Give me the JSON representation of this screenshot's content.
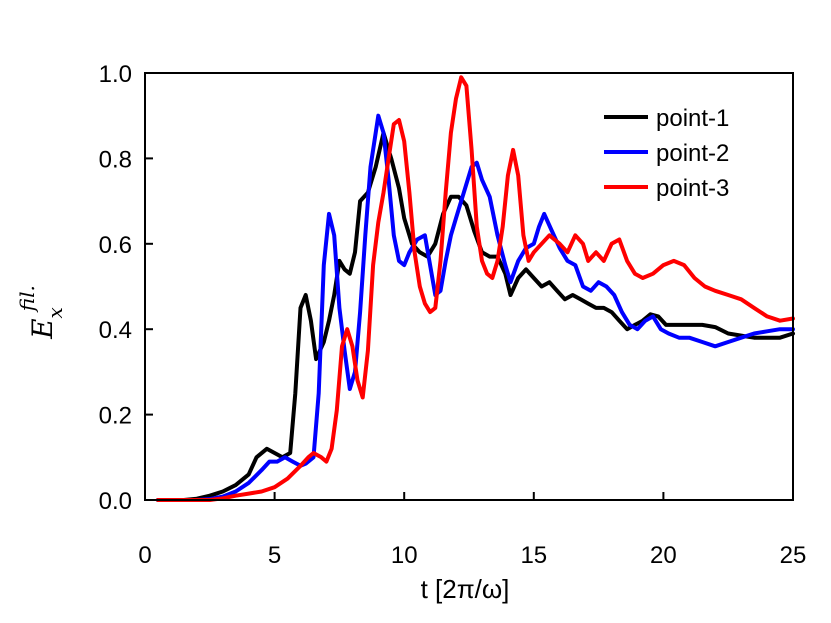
{
  "chart_data": {
    "type": "line",
    "xlabel": "t [2π/ω]",
    "ylabel": {
      "main": "E",
      "sub": "x",
      "sup": "fil."
    },
    "xlim": [
      0,
      25
    ],
    "ylim": [
      0,
      1.0
    ],
    "xticks": [
      0,
      5,
      10,
      15,
      20,
      25
    ],
    "yticks": [
      0.0,
      0.2,
      0.4,
      0.6,
      0.8,
      1.0
    ],
    "xtick_labels": [
      "0",
      "5",
      "10",
      "15",
      "20",
      "25"
    ],
    "ytick_labels": [
      "0.0",
      "0.2",
      "0.4",
      "0.6",
      "0.8",
      "1.0"
    ],
    "grid": false,
    "legend_position": "top-right",
    "series": [
      {
        "name": "point-1",
        "color": "#000000",
        "points": [
          [
            0.5,
            0.0
          ],
          [
            1.5,
            0.0
          ],
          [
            2.0,
            0.003
          ],
          [
            2.5,
            0.01
          ],
          [
            3.0,
            0.02
          ],
          [
            3.5,
            0.035
          ],
          [
            4.0,
            0.06
          ],
          [
            4.3,
            0.1
          ],
          [
            4.7,
            0.12
          ],
          [
            5.0,
            0.11
          ],
          [
            5.3,
            0.1
          ],
          [
            5.6,
            0.11
          ],
          [
            5.8,
            0.25
          ],
          [
            6.0,
            0.45
          ],
          [
            6.2,
            0.48
          ],
          [
            6.4,
            0.42
          ],
          [
            6.6,
            0.33
          ],
          [
            6.9,
            0.37
          ],
          [
            7.1,
            0.42
          ],
          [
            7.3,
            0.48
          ],
          [
            7.5,
            0.56
          ],
          [
            7.7,
            0.54
          ],
          [
            7.9,
            0.53
          ],
          [
            8.1,
            0.58
          ],
          [
            8.3,
            0.7
          ],
          [
            8.6,
            0.72
          ],
          [
            8.9,
            0.78
          ],
          [
            9.2,
            0.86
          ],
          [
            9.5,
            0.8
          ],
          [
            9.8,
            0.73
          ],
          [
            10.0,
            0.66
          ],
          [
            10.3,
            0.6
          ],
          [
            10.6,
            0.58
          ],
          [
            10.9,
            0.57
          ],
          [
            11.2,
            0.6
          ],
          [
            11.5,
            0.67
          ],
          [
            11.8,
            0.71
          ],
          [
            12.1,
            0.71
          ],
          [
            12.4,
            0.69
          ],
          [
            12.7,
            0.63
          ],
          [
            13.0,
            0.58
          ],
          [
            13.3,
            0.57
          ],
          [
            13.6,
            0.57
          ],
          [
            13.9,
            0.53
          ],
          [
            14.1,
            0.48
          ],
          [
            14.4,
            0.52
          ],
          [
            14.7,
            0.54
          ],
          [
            15.0,
            0.52
          ],
          [
            15.3,
            0.5
          ],
          [
            15.6,
            0.51
          ],
          [
            15.9,
            0.49
          ],
          [
            16.2,
            0.47
          ],
          [
            16.5,
            0.48
          ],
          [
            16.8,
            0.47
          ],
          [
            17.1,
            0.46
          ],
          [
            17.4,
            0.45
          ],
          [
            17.7,
            0.45
          ],
          [
            18.0,
            0.44
          ],
          [
            18.3,
            0.42
          ],
          [
            18.6,
            0.4
          ],
          [
            18.9,
            0.41
          ],
          [
            19.2,
            0.42
          ],
          [
            19.5,
            0.435
          ],
          [
            19.8,
            0.43
          ],
          [
            20.1,
            0.41
          ],
          [
            20.5,
            0.41
          ],
          [
            21.0,
            0.41
          ],
          [
            21.5,
            0.41
          ],
          [
            22.0,
            0.405
          ],
          [
            22.5,
            0.39
          ],
          [
            23.0,
            0.385
          ],
          [
            23.5,
            0.38
          ],
          [
            24.0,
            0.38
          ],
          [
            24.5,
            0.38
          ],
          [
            25.0,
            0.39
          ]
        ]
      },
      {
        "name": "point-2",
        "color": "#0000ff",
        "points": [
          [
            0.5,
            0.0
          ],
          [
            2.0,
            0.0
          ],
          [
            2.5,
            0.002
          ],
          [
            3.0,
            0.008
          ],
          [
            3.5,
            0.02
          ],
          [
            4.0,
            0.04
          ],
          [
            4.5,
            0.07
          ],
          [
            4.8,
            0.09
          ],
          [
            5.1,
            0.09
          ],
          [
            5.4,
            0.1
          ],
          [
            5.7,
            0.09
          ],
          [
            6.0,
            0.08
          ],
          [
            6.2,
            0.085
          ],
          [
            6.5,
            0.1
          ],
          [
            6.7,
            0.25
          ],
          [
            6.9,
            0.55
          ],
          [
            7.1,
            0.67
          ],
          [
            7.3,
            0.62
          ],
          [
            7.5,
            0.45
          ],
          [
            7.7,
            0.35
          ],
          [
            7.9,
            0.26
          ],
          [
            8.1,
            0.3
          ],
          [
            8.3,
            0.44
          ],
          [
            8.5,
            0.62
          ],
          [
            8.7,
            0.78
          ],
          [
            9.0,
            0.9
          ],
          [
            9.2,
            0.86
          ],
          [
            9.4,
            0.75
          ],
          [
            9.6,
            0.62
          ],
          [
            9.8,
            0.56
          ],
          [
            10.0,
            0.55
          ],
          [
            10.2,
            0.58
          ],
          [
            10.5,
            0.61
          ],
          [
            10.8,
            0.62
          ],
          [
            11.0,
            0.55
          ],
          [
            11.2,
            0.48
          ],
          [
            11.4,
            0.49
          ],
          [
            11.6,
            0.56
          ],
          [
            11.8,
            0.62
          ],
          [
            12.0,
            0.66
          ],
          [
            12.3,
            0.72
          ],
          [
            12.6,
            0.78
          ],
          [
            12.8,
            0.79
          ],
          [
            13.0,
            0.75
          ],
          [
            13.3,
            0.71
          ],
          [
            13.6,
            0.62
          ],
          [
            13.9,
            0.55
          ],
          [
            14.1,
            0.51
          ],
          [
            14.4,
            0.56
          ],
          [
            14.7,
            0.59
          ],
          [
            15.0,
            0.6
          ],
          [
            15.2,
            0.64
          ],
          [
            15.4,
            0.67
          ],
          [
            15.7,
            0.63
          ],
          [
            16.0,
            0.59
          ],
          [
            16.3,
            0.56
          ],
          [
            16.6,
            0.55
          ],
          [
            16.9,
            0.5
          ],
          [
            17.2,
            0.49
          ],
          [
            17.5,
            0.51
          ],
          [
            17.8,
            0.5
          ],
          [
            18.1,
            0.48
          ],
          [
            18.4,
            0.44
          ],
          [
            18.7,
            0.41
          ],
          [
            19.0,
            0.4
          ],
          [
            19.3,
            0.42
          ],
          [
            19.6,
            0.43
          ],
          [
            19.9,
            0.4
          ],
          [
            20.2,
            0.39
          ],
          [
            20.6,
            0.38
          ],
          [
            21.0,
            0.38
          ],
          [
            21.5,
            0.37
          ],
          [
            22.0,
            0.36
          ],
          [
            22.5,
            0.37
          ],
          [
            23.0,
            0.38
          ],
          [
            23.5,
            0.39
          ],
          [
            24.0,
            0.395
          ],
          [
            24.5,
            0.4
          ],
          [
            25.0,
            0.4
          ]
        ]
      },
      {
        "name": "point-3",
        "color": "#ff0000",
        "points": [
          [
            0.5,
            0.0
          ],
          [
            2.5,
            0.0
          ],
          [
            3.0,
            0.004
          ],
          [
            3.5,
            0.01
          ],
          [
            4.0,
            0.015
          ],
          [
            4.5,
            0.02
          ],
          [
            5.0,
            0.03
          ],
          [
            5.5,
            0.05
          ],
          [
            6.0,
            0.08
          ],
          [
            6.3,
            0.1
          ],
          [
            6.5,
            0.11
          ],
          [
            6.8,
            0.1
          ],
          [
            7.0,
            0.09
          ],
          [
            7.2,
            0.12
          ],
          [
            7.4,
            0.21
          ],
          [
            7.6,
            0.36
          ],
          [
            7.8,
            0.4
          ],
          [
            8.0,
            0.36
          ],
          [
            8.2,
            0.28
          ],
          [
            8.4,
            0.24
          ],
          [
            8.6,
            0.35
          ],
          [
            8.8,
            0.55
          ],
          [
            9.0,
            0.65
          ],
          [
            9.2,
            0.72
          ],
          [
            9.4,
            0.8
          ],
          [
            9.6,
            0.88
          ],
          [
            9.8,
            0.89
          ],
          [
            10.0,
            0.84
          ],
          [
            10.2,
            0.72
          ],
          [
            10.4,
            0.58
          ],
          [
            10.6,
            0.5
          ],
          [
            10.8,
            0.46
          ],
          [
            11.0,
            0.44
          ],
          [
            11.2,
            0.45
          ],
          [
            11.4,
            0.56
          ],
          [
            11.6,
            0.72
          ],
          [
            11.8,
            0.86
          ],
          [
            12.0,
            0.94
          ],
          [
            12.2,
            0.99
          ],
          [
            12.4,
            0.97
          ],
          [
            12.6,
            0.82
          ],
          [
            12.8,
            0.64
          ],
          [
            13.0,
            0.56
          ],
          [
            13.2,
            0.53
          ],
          [
            13.4,
            0.52
          ],
          [
            13.6,
            0.56
          ],
          [
            13.8,
            0.64
          ],
          [
            14.0,
            0.76
          ],
          [
            14.2,
            0.82
          ],
          [
            14.4,
            0.76
          ],
          [
            14.6,
            0.62
          ],
          [
            14.8,
            0.56
          ],
          [
            15.0,
            0.58
          ],
          [
            15.3,
            0.6
          ],
          [
            15.6,
            0.62
          ],
          [
            16.0,
            0.6
          ],
          [
            16.3,
            0.58
          ],
          [
            16.6,
            0.62
          ],
          [
            16.9,
            0.6
          ],
          [
            17.1,
            0.56
          ],
          [
            17.4,
            0.58
          ],
          [
            17.7,
            0.56
          ],
          [
            18.0,
            0.6
          ],
          [
            18.3,
            0.61
          ],
          [
            18.6,
            0.56
          ],
          [
            18.9,
            0.53
          ],
          [
            19.2,
            0.52
          ],
          [
            19.6,
            0.53
          ],
          [
            20.0,
            0.55
          ],
          [
            20.4,
            0.56
          ],
          [
            20.8,
            0.55
          ],
          [
            21.2,
            0.52
          ],
          [
            21.6,
            0.5
          ],
          [
            22.0,
            0.49
          ],
          [
            22.5,
            0.48
          ],
          [
            23.0,
            0.47
          ],
          [
            23.5,
            0.45
          ],
          [
            24.0,
            0.43
          ],
          [
            24.5,
            0.42
          ],
          [
            25.0,
            0.425
          ]
        ]
      }
    ]
  }
}
